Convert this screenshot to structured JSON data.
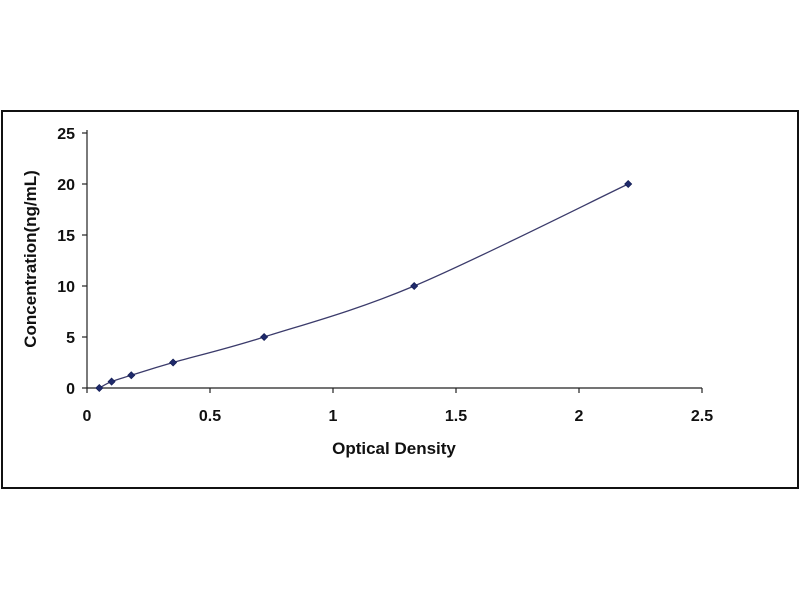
{
  "chart_data": {
    "type": "scatter",
    "xlabel": "Optical Density",
    "ylabel": "Concentration(ng/mL)",
    "xlim": [
      0,
      2.5
    ],
    "ylim": [
      0,
      25
    ],
    "x_ticks": [
      "0",
      "0.5",
      "1",
      "1.5",
      "2",
      "2.5"
    ],
    "y_ticks": [
      "0",
      "5",
      "10",
      "15",
      "20",
      "25"
    ],
    "grid": false,
    "legend": "none",
    "fit": "smooth curve through points",
    "series": [
      {
        "x": [
          0.05,
          0.1,
          0.18,
          0.35,
          0.72,
          1.33,
          2.2
        ],
        "y": [
          0,
          0.63,
          1.25,
          2.5,
          5,
          10,
          20
        ],
        "marker": "diamond",
        "color": "#1f2a6b"
      }
    ]
  }
}
